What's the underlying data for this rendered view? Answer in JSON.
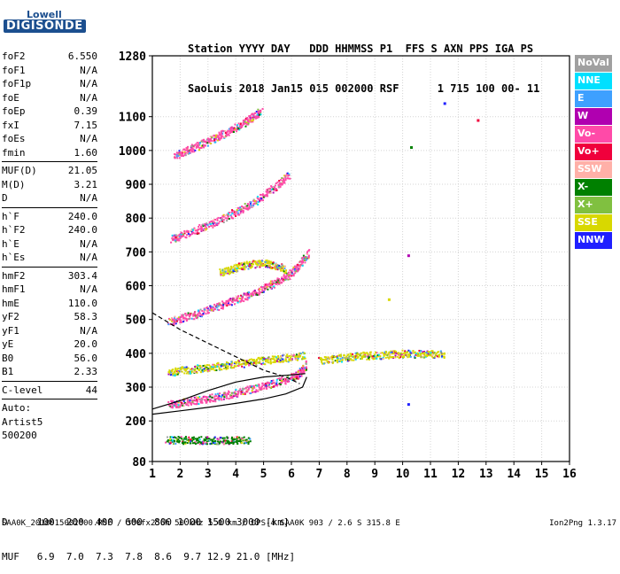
{
  "logo": {
    "line1": "Lowell",
    "line2": "DIGISONDE"
  },
  "header": {
    "line1": "Station YYYY DAY   DDD HHMMSS P1  FFS S AXN PPS IGA PS",
    "line2": "SaoLuis 2018 Jan15 015 002000 RSF      1 715 100 00- 11"
  },
  "params": [
    {
      "name": "foF2",
      "value": "6.550"
    },
    {
      "name": "foF1",
      "value": "N/A"
    },
    {
      "name": "foF1p",
      "value": "N/A"
    },
    {
      "name": "foE",
      "value": "N/A"
    },
    {
      "name": "foEp",
      "value": "0.39"
    },
    {
      "name": "fxI",
      "value": "7.15"
    },
    {
      "name": "foEs",
      "value": "N/A"
    },
    {
      "name": "fmin",
      "value": "1.60",
      "sep": true
    },
    {
      "name": "MUF(D)",
      "value": "21.05"
    },
    {
      "name": "M(D)",
      "value": "3.21"
    },
    {
      "name": "D",
      "value": "N/A",
      "sep": true
    },
    {
      "name": "h`F",
      "value": "240.0"
    },
    {
      "name": "h`F2",
      "value": "240.0"
    },
    {
      "name": "h`E",
      "value": "N/A"
    },
    {
      "name": "h`Es",
      "value": "N/A",
      "sep": true
    },
    {
      "name": "hmF2",
      "value": "303.4"
    },
    {
      "name": "hmF1",
      "value": "N/A"
    },
    {
      "name": "hmE",
      "value": "110.0"
    },
    {
      "name": "yF2",
      "value": "58.3"
    },
    {
      "name": "yF1",
      "value": "N/A"
    },
    {
      "name": "yE",
      "value": "20.0"
    },
    {
      "name": "B0",
      "value": "56.0"
    },
    {
      "name": "B1",
      "value": "2.33",
      "sep": true
    },
    {
      "name": "C-level",
      "value": "44",
      "sep": true
    },
    {
      "name": "Auto:",
      "value": ""
    },
    {
      "name": "Artist5",
      "value": ""
    },
    {
      "name": "500200",
      "value": ""
    }
  ],
  "legend": [
    {
      "label": "NoVal",
      "color": "#a0a0a0"
    },
    {
      "label": "NNE",
      "color": "#00e0ff"
    },
    {
      "label": "E",
      "color": "#3ea0ff"
    },
    {
      "label": "W",
      "color": "#b000b0"
    },
    {
      "label": "Vo-",
      "color": "#ff4aa8"
    },
    {
      "label": "Vo+",
      "color": "#f0003c"
    },
    {
      "label": "SSW",
      "color": "#ffb0a8"
    },
    {
      "label": "X-",
      "color": "#008000"
    },
    {
      "label": "X+",
      "color": "#80c040"
    },
    {
      "label": "SSE",
      "color": "#d8d800"
    },
    {
      "label": "NNW",
      "color": "#2020ff"
    }
  ],
  "muf_table": {
    "line1": "D     100  200  400  600  800 1000 1500 3000 [km]",
    "line2": "MUF   6.9  7.0  7.3  7.8  8.6  9.7 12.9 21.0 [MHz]"
  },
  "footer": "SAA0K_2018015002000.RSF / 300fx256h 50 kHz 5.0 km / DPS-4 SAA0K 903 / 2.6 S 315.8 E",
  "version": "Ion2Png 1.3.17",
  "chart_data": {
    "type": "scatter",
    "xlim": [
      1,
      16
    ],
    "ylim": [
      80,
      1280
    ],
    "x_ticks": [
      1,
      2,
      3,
      4,
      5,
      6,
      7,
      8,
      9,
      10,
      11,
      12,
      13,
      14,
      15,
      16
    ],
    "y_ticks": [
      80,
      200,
      300,
      400,
      500,
      600,
      700,
      800,
      900,
      1000,
      1100,
      1280
    ],
    "trace_series": [
      {
        "color": "#ff4aa8",
        "x": [
          1.6,
          2.0,
          2.5,
          3.0,
          3.5,
          4.0,
          4.5,
          5.0,
          5.5,
          6.0,
          6.3,
          6.5
        ],
        "y": [
          250,
          255,
          262,
          268,
          275,
          285,
          295,
          305,
          318,
          330,
          345,
          370
        ]
      },
      {
        "color": "#ff4aa8",
        "x": [
          1.6,
          2.0,
          2.5,
          3.0,
          3.5,
          4.0,
          4.5,
          5.0,
          5.5,
          6.0,
          6.3,
          6.6
        ],
        "y": [
          495,
          505,
          515,
          530,
          545,
          560,
          575,
          595,
          615,
          640,
          665,
          700
        ]
      },
      {
        "color": "#ff4aa8",
        "x": [
          1.7,
          2.0,
          2.5,
          3.0,
          3.5,
          4.0,
          4.5,
          5.0,
          5.5,
          5.9
        ],
        "y": [
          740,
          750,
          765,
          780,
          800,
          820,
          840,
          870,
          900,
          930
        ]
      },
      {
        "color": "#ff4aa8",
        "x": [
          1.8,
          2.2,
          2.6,
          3.0,
          3.4,
          3.8,
          4.2,
          4.6,
          4.9
        ],
        "y": [
          985,
          1000,
          1015,
          1030,
          1045,
          1060,
          1080,
          1100,
          1120
        ]
      },
      {
        "color": "#d8d800",
        "x": [
          1.6,
          2.0,
          2.5,
          3.0,
          3.5,
          4.0,
          4.5,
          5.0,
          5.5,
          6.0,
          6.5
        ],
        "y": [
          345,
          350,
          355,
          360,
          365,
          370,
          375,
          380,
          385,
          390,
          395
        ]
      },
      {
        "color": "#d8d800",
        "x": [
          7.0,
          7.5,
          8.0,
          8.5,
          9.0,
          9.5,
          10.0,
          10.5,
          11.0,
          11.5
        ],
        "y": [
          380,
          385,
          390,
          395,
          395,
          398,
          400,
          400,
          400,
          400
        ]
      },
      {
        "color": "#008000",
        "x": [
          1.5,
          2.0,
          2.5,
          3.0,
          3.5,
          4.0,
          4.5
        ],
        "y": [
          145,
          145,
          145,
          145,
          145,
          145,
          145
        ]
      },
      {
        "color": "#d8d800",
        "x": [
          3.4,
          3.8,
          4.2,
          4.6,
          5.0,
          5.4,
          5.8
        ],
        "y": [
          640,
          650,
          660,
          665,
          670,
          660,
          650
        ]
      }
    ],
    "curves": [
      {
        "style": "solid",
        "x": [
          1.0,
          2.0,
          3.0,
          4.0,
          5.0,
          5.8,
          6.4,
          6.55
        ],
        "y": [
          220,
          230,
          240,
          252,
          265,
          280,
          300,
          330
        ]
      },
      {
        "style": "dashed",
        "x": [
          1.0,
          2.0,
          3.0,
          4.0,
          5.0,
          5.8,
          6.3
        ],
        "y": [
          520,
          470,
          430,
          390,
          350,
          330,
          310
        ]
      },
      {
        "style": "solid",
        "x": [
          1.0,
          2.0,
          3.0,
          4.0,
          5.0,
          5.8,
          6.5
        ],
        "y": [
          235,
          260,
          290,
          315,
          330,
          335,
          340
        ]
      }
    ],
    "isolated_points": [
      {
        "x": 10.2,
        "y": 690,
        "color": "#b000b0"
      },
      {
        "x": 11.5,
        "y": 1140,
        "color": "#2020ff"
      },
      {
        "x": 12.7,
        "y": 1090,
        "color": "#f0003c"
      },
      {
        "x": 10.3,
        "y": 1010,
        "color": "#008000"
      },
      {
        "x": 10.2,
        "y": 250,
        "color": "#2020ff"
      },
      {
        "x": 9.5,
        "y": 560,
        "color": "#d8d800"
      }
    ]
  }
}
